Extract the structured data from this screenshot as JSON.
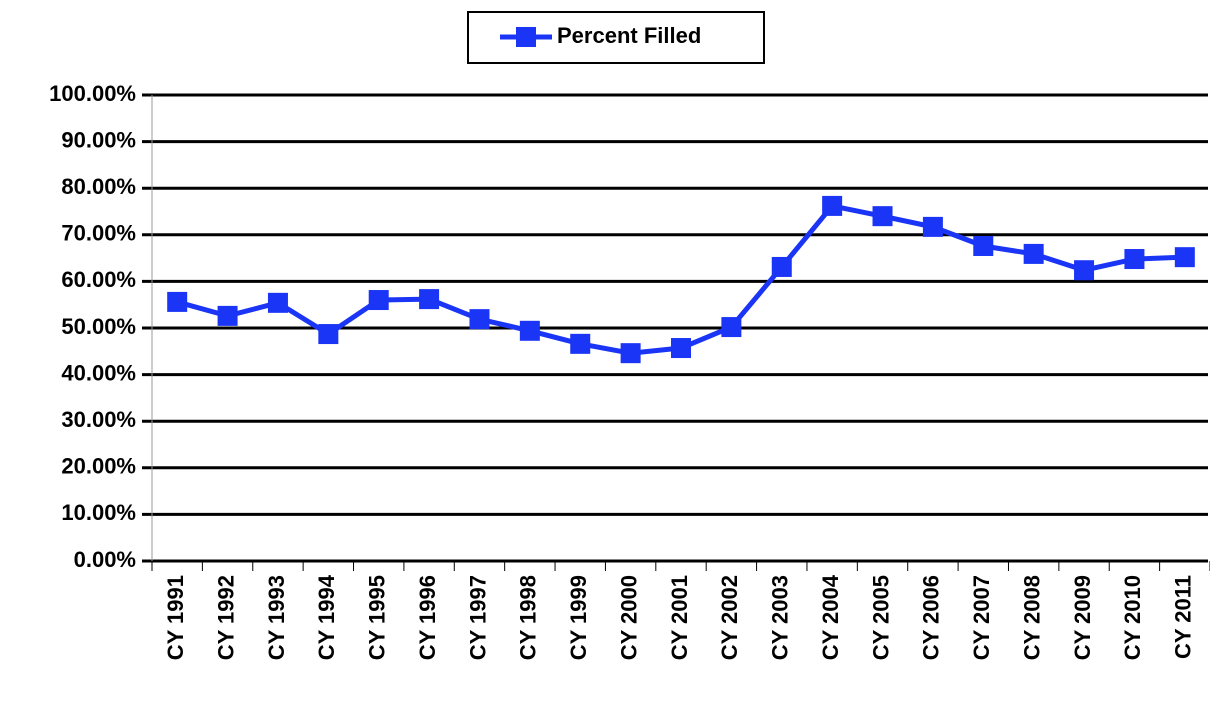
{
  "chart_data": {
    "type": "line",
    "categories": [
      "CY 1991",
      "CY 1992",
      "CY 1993",
      "CY 1994",
      "CY 1995",
      "CY 1996",
      "CY 1997",
      "CY 1998",
      "CY 1999",
      "CY 2000",
      "CY 2001",
      "CY 2002",
      "CY 2003",
      "CY 2004",
      "CY 2005",
      "CY 2006",
      "CY 2007",
      "CY 2008",
      "CY 2009",
      "CY 2010",
      "CY 2011"
    ],
    "series": [
      {
        "name": "Percent Filled",
        "color": "#1a35f5",
        "values": [
          55.6,
          52.6,
          55.4,
          48.7,
          56.0,
          56.2,
          51.9,
          49.4,
          46.6,
          44.6,
          45.7,
          50.2,
          63.1,
          76.2,
          74.0,
          71.7,
          67.6,
          65.9,
          62.4,
          64.8,
          65.2
        ]
      }
    ],
    "ylim": [
      0,
      100
    ],
    "yticks": [
      {
        "value": 0,
        "label": "0.00%"
      },
      {
        "value": 10,
        "label": "10.00%"
      },
      {
        "value": 20,
        "label": "20.00%"
      },
      {
        "value": 30,
        "label": "30.00%"
      },
      {
        "value": 40,
        "label": "40.00%"
      },
      {
        "value": 50,
        "label": "50.00%"
      },
      {
        "value": 60,
        "label": "60.00%"
      },
      {
        "value": 70,
        "label": "70.00%"
      },
      {
        "value": 80,
        "label": "80.00%"
      },
      {
        "value": 90,
        "label": "90.00%"
      },
      {
        "value": 100,
        "label": "100.00%"
      }
    ],
    "grid": true,
    "legend": "top"
  }
}
